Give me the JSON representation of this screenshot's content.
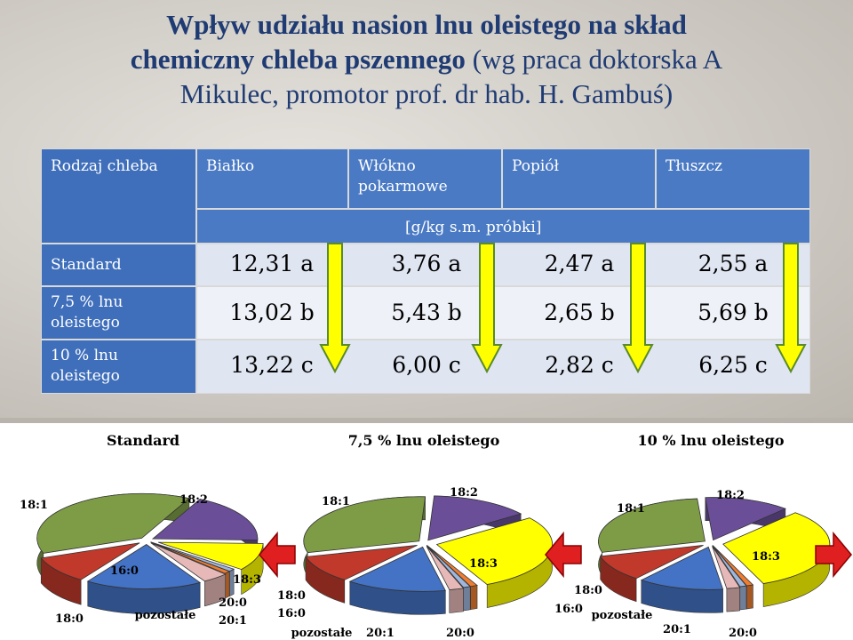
{
  "title": {
    "bold_line1": "Wpływ udziału nasion lnu oleistego na skład",
    "bold_line2": "chemiczny chleba pszennego",
    "normal_line2": " (wg praca doktorska A",
    "normal_line3": "Mikulec, promotor prof. dr hab. H. Gambuś)"
  },
  "table": {
    "corner": "Rodzaj chleba",
    "columns": [
      "Białko",
      "Włókno pokarmowe",
      "Popiół",
      "Tłuszcz"
    ],
    "unit": "[g/kg s.m. próbki]",
    "rows": [
      {
        "label": "Standard",
        "values": [
          "12,31 a",
          "3,76 a",
          "2,47 a",
          "2,55 a"
        ]
      },
      {
        "label": "7,5 % lnu oleistego",
        "values": [
          "13,02 b",
          "5,43 b",
          "2,65 b",
          "5,69 b"
        ]
      },
      {
        "label": "10 % lnu oleistego",
        "values": [
          "13,22 c",
          "6,00 c",
          "2,82 c",
          "6,25 c"
        ]
      }
    ]
  },
  "colors": {
    "header_bg": "#4a7ac4",
    "arrow_fill": "#ffff00",
    "arrow_stroke": "#5a8a2a",
    "red_arrow": "#e02020",
    "s18_1": "#7e9c46",
    "s18_2": "#6a4f98",
    "s18_3": "#ffff00",
    "s16_0": "#4472c4",
    "s18_0": "#c0392b",
    "pozostale": "#e6b9b8",
    "s20_1": "#9fb6dc",
    "s20_0": "#ed7d31"
  },
  "chart_data": [
    {
      "type": "pie",
      "title": "Standard",
      "series": [
        {
          "name": "18:1",
          "value": 38
        },
        {
          "name": "18:2",
          "value": 18
        },
        {
          "name": "18:3",
          "value": 10
        },
        {
          "name": "20:1",
          "value": 1
        },
        {
          "name": "20:0",
          "value": 1
        },
        {
          "name": "pozostałe",
          "value": 4
        },
        {
          "name": "16:0",
          "value": 18
        },
        {
          "name": "18:0",
          "value": 10
        }
      ]
    },
    {
      "type": "pie",
      "title": "7,5 % lnu oleistego",
      "series": [
        {
          "name": "18:1",
          "value": 30
        },
        {
          "name": "18:2",
          "value": 14
        },
        {
          "name": "18:3",
          "value": 28
        },
        {
          "name": "20:0",
          "value": 1
        },
        {
          "name": "20:1",
          "value": 1
        },
        {
          "name": "pozostałe",
          "value": 2
        },
        {
          "name": "16:0",
          "value": 14
        },
        {
          "name": "18:0",
          "value": 10
        }
      ]
    },
    {
      "type": "pie",
      "title": "10 % lnu oleistego",
      "series": [
        {
          "name": "18:1",
          "value": 28
        },
        {
          "name": "18:2",
          "value": 13
        },
        {
          "name": "18:3",
          "value": 32
        },
        {
          "name": "20:0",
          "value": 1
        },
        {
          "name": "20:1",
          "value": 1
        },
        {
          "name": "pozostałe",
          "value": 2
        },
        {
          "name": "16:0",
          "value": 13
        },
        {
          "name": "18:0",
          "value": 10
        }
      ]
    }
  ]
}
